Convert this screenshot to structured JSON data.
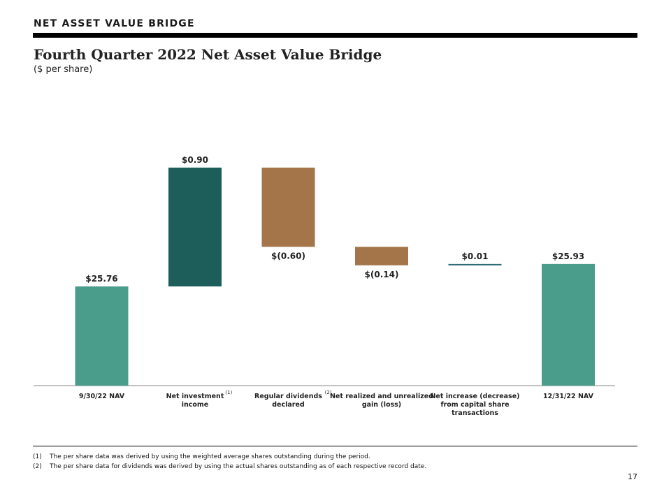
{
  "header": {
    "section_title": "NET ASSET VALUE BRIDGE",
    "title": "Fourth Quarter 2022 Net Asset Value Bridge",
    "subtitle": "($ per share)"
  },
  "chart_data": {
    "type": "bar",
    "variant": "waterfall",
    "categories": [
      "9/30/22 NAV",
      "Net investment income",
      "Regular dividends declared",
      "Net realized and unrealized gain (loss)",
      "Net increase (decrease) from capital share transactions",
      "12/31/22 NAV"
    ],
    "category_lines": [
      [
        "9/30/22 NAV"
      ],
      [
        "Net investment",
        "income"
      ],
      [
        "Regular dividends",
        "declared"
      ],
      [
        "Net realized and unrealized",
        "gain (loss)"
      ],
      [
        "Net increase (decrease)",
        "from capital share",
        "transactions"
      ],
      [
        "12/31/22 NAV"
      ]
    ],
    "category_superscripts": [
      "",
      "(1)",
      "(2)",
      "",
      "",
      ""
    ],
    "values": [
      25.76,
      0.9,
      -0.6,
      -0.14,
      0.01,
      25.93
    ],
    "bar_kinds": [
      "total",
      "delta",
      "delta",
      "delta",
      "delta",
      "total"
    ],
    "data_labels": [
      "$25.76",
      "$0.90",
      "$(0.60)",
      "$(0.14)",
      "$0.01",
      "$25.93"
    ],
    "colors": {
      "total": "#4a9c8b",
      "increase": "#1d5e5a",
      "decrease": "#a37549",
      "small_increase": "#2a6b73",
      "axis": "#888888"
    }
  },
  "footnotes": [
    {
      "num": "(1)",
      "text": "The per share data was derived by using the weighted average shares outstanding during the period."
    },
    {
      "num": "(2)",
      "text": "The per share data for dividends was derived by using the actual shares outstanding as of each respective record date."
    }
  ],
  "page_number": "17"
}
